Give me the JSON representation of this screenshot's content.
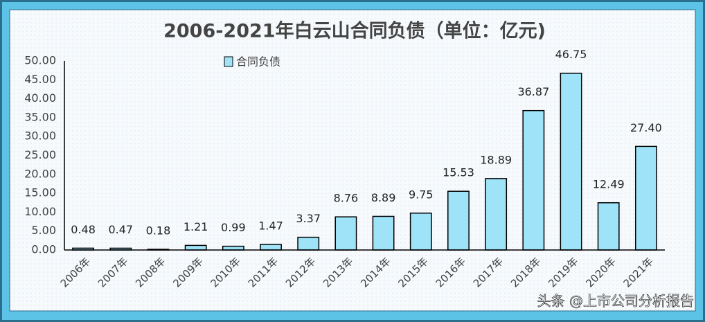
{
  "chart_data": {
    "type": "bar",
    "title": "2006-2021年白云山合同负债（单位：亿元)",
    "categories": [
      "2006年",
      "2007年",
      "2008年",
      "2009年",
      "2010年",
      "2011年",
      "2012年",
      "2013年",
      "2014年",
      "2015年",
      "2016年",
      "2017年",
      "2018年",
      "2019年",
      "2020年",
      "2021年"
    ],
    "series": [
      {
        "name": "合同负债",
        "color": "#9ee3f7",
        "values": [
          0.48,
          0.47,
          0.18,
          1.21,
          0.99,
          1.47,
          3.37,
          8.76,
          8.89,
          9.75,
          15.53,
          18.89,
          36.87,
          46.75,
          12.49,
          27.4
        ],
        "value_labels": [
          "0.48",
          "0.47",
          "0.18",
          "1.21",
          "0.99",
          "1.47",
          "3.37",
          "8.76",
          "8.89",
          "9.75",
          "15.53",
          "18.89",
          "36.87",
          "46.75",
          "12.49",
          "27.40"
        ]
      }
    ],
    "ylim": [
      0,
      50
    ],
    "yticks": [
      {
        "value": 0,
        "label": "0.00"
      },
      {
        "value": 5,
        "label": "5.00"
      },
      {
        "value": 10,
        "label": "10.00"
      },
      {
        "value": 15,
        "label": "15.00"
      },
      {
        "value": 20,
        "label": "20.00"
      },
      {
        "value": 25,
        "label": "25.00"
      },
      {
        "value": 30,
        "label": "30.00"
      },
      {
        "value": 35,
        "label": "35.00"
      },
      {
        "value": 40,
        "label": "40.00"
      },
      {
        "value": 45,
        "label": "45.00"
      },
      {
        "value": 50,
        "label": "50.00"
      }
    ],
    "grid": false,
    "watermark": "头条 @上市公司分析报告"
  }
}
